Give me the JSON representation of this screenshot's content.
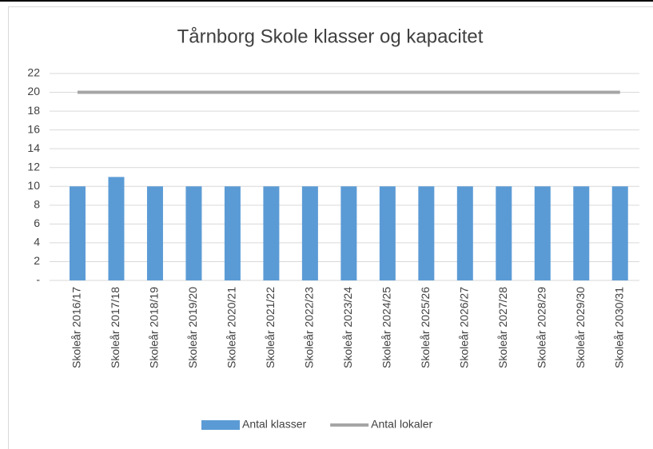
{
  "chart_data": {
    "type": "bar",
    "title": "Tårnborg Skole klasser og kapacitet",
    "categories": [
      "Skoleår 2016/17",
      "Skoleår 2017/18",
      "Skoleår 2018/19",
      "Skoleår 2019/20",
      "Skoleår 2020/21",
      "Skoleår 2021/22",
      "Skoleår 2022/23",
      "Skoleår 2023/24",
      "Skoleår 2024/25",
      "Skoleår 2025/26",
      "Skoleår 2026/27",
      "Skoleår 2027/28",
      "Skoleår 2028/29",
      "Skoleår 2029/30",
      "Skoleår 2030/31"
    ],
    "series": [
      {
        "name": "Antal klasser",
        "type": "bar",
        "color": "#5b9bd5",
        "values": [
          10,
          11,
          10,
          10,
          10,
          10,
          10,
          10,
          10,
          10,
          10,
          10,
          10,
          10,
          10
        ]
      },
      {
        "name": "Antal lokaler",
        "type": "line",
        "color": "#a5a5a5",
        "values": [
          20,
          20,
          20,
          20,
          20,
          20,
          20,
          20,
          20,
          20,
          20,
          20,
          20,
          20,
          20
        ]
      }
    ],
    "ylim": [
      0,
      22
    ],
    "yticks": [
      {
        "value": 0,
        "label": "-"
      },
      2,
      4,
      6,
      8,
      10,
      12,
      14,
      16,
      18,
      20,
      22
    ],
    "grid": true,
    "legend": "bottom"
  }
}
